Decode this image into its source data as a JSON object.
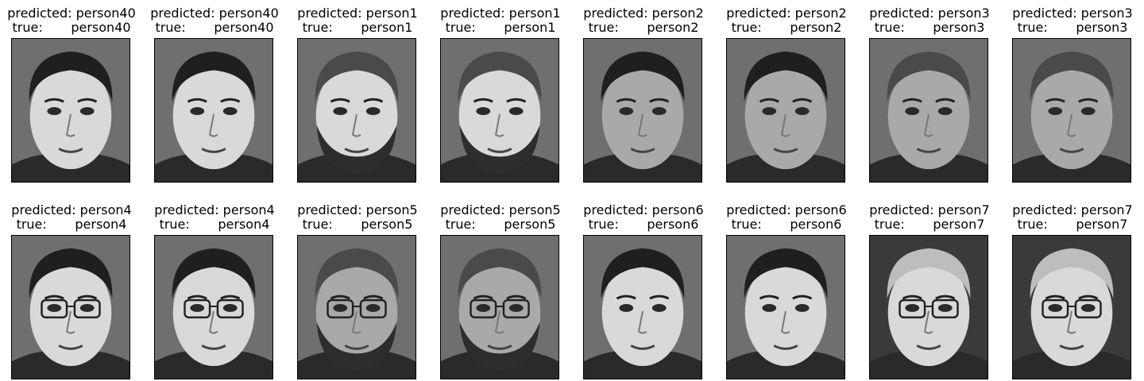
{
  "panels": [
    {
      "predicted": "predicted: person40",
      "true": "true:       person40",
      "tone": "light",
      "hair": "dark",
      "beard": false,
      "glasses": false
    },
    {
      "predicted": "predicted: person40",
      "true": "true:       person40",
      "tone": "light",
      "hair": "dark",
      "beard": false,
      "glasses": false
    },
    {
      "predicted": "predicted: person1",
      "true": "true:       person1",
      "tone": "light",
      "hair": "mid",
      "beard": true,
      "glasses": false
    },
    {
      "predicted": "predicted: person1",
      "true": "true:       person1",
      "tone": "light",
      "hair": "mid",
      "beard": true,
      "glasses": false
    },
    {
      "predicted": "predicted: person2",
      "true": "true:       person2",
      "tone": "mid",
      "hair": "dark",
      "beard": false,
      "glasses": false
    },
    {
      "predicted": "predicted: person2",
      "true": "true:       person2",
      "tone": "mid",
      "hair": "dark",
      "beard": false,
      "glasses": false
    },
    {
      "predicted": "predicted: person3",
      "true": "true:       person3",
      "tone": "mid",
      "hair": "mid",
      "beard": false,
      "glasses": false
    },
    {
      "predicted": "predicted: person3",
      "true": "true:       person3",
      "tone": "mid",
      "hair": "mid",
      "beard": false,
      "glasses": false
    },
    {
      "predicted": "predicted: person4",
      "true": "true:       person4",
      "tone": "light",
      "hair": "dark",
      "beard": false,
      "glasses": true
    },
    {
      "predicted": "predicted: person4",
      "true": "true:       person4",
      "tone": "light",
      "hair": "dark",
      "beard": false,
      "glasses": true
    },
    {
      "predicted": "predicted: person5",
      "true": "true:       person5",
      "tone": "mid",
      "hair": "mid",
      "beard": true,
      "glasses": true
    },
    {
      "predicted": "predicted: person5",
      "true": "true:       person5",
      "tone": "mid",
      "hair": "mid",
      "beard": true,
      "glasses": true
    },
    {
      "predicted": "predicted: person6",
      "true": "true:       person6",
      "tone": "light",
      "hair": "dark",
      "beard": false,
      "glasses": false
    },
    {
      "predicted": "predicted: person6",
      "true": "true:       person6",
      "tone": "light",
      "hair": "dark",
      "beard": false,
      "glasses": false
    },
    {
      "predicted": "predicted: person7",
      "true": "true:       person7",
      "tone": "light",
      "hair": "light",
      "beard": false,
      "glasses": true
    },
    {
      "predicted": "predicted: person7",
      "true": "true:       person7",
      "tone": "light",
      "hair": "light",
      "beard": false,
      "glasses": true
    }
  ],
  "colors": {
    "background_dark": "#3a3a3a",
    "background_mid": "#6f6f6f",
    "skin_light": "#d9d9d9",
    "skin_mid": "#a9a9a9",
    "hair_dark": "#1f1f1f",
    "hair_mid": "#4a4a4a",
    "hair_light": "#bdbdbd",
    "beard": "#2d2d2d",
    "frame": "#000000"
  }
}
